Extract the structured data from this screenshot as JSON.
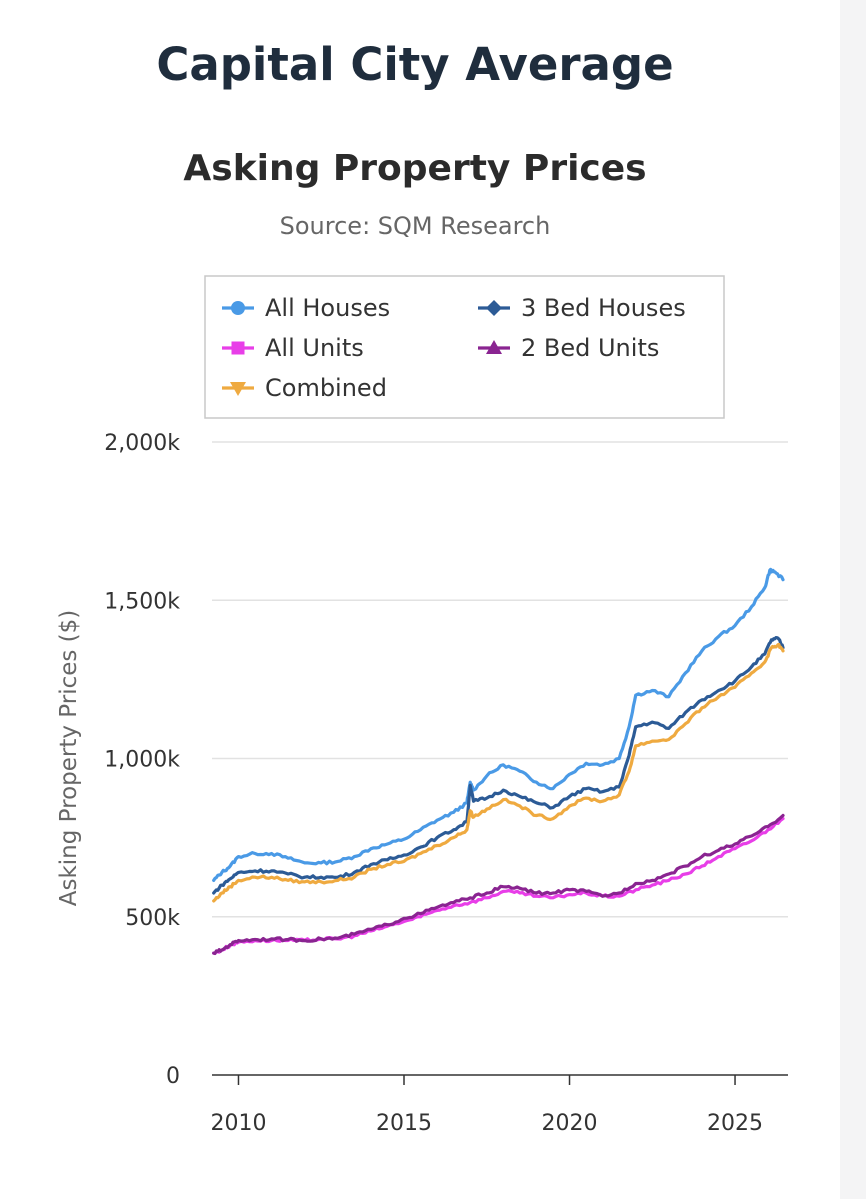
{
  "page": {
    "title": "Capital City Average"
  },
  "chart_data": {
    "type": "line",
    "title": "Asking Property Prices",
    "subtitle": "Source: SQM Research",
    "xlabel": "",
    "ylabel": "Asking Property Prices ($)",
    "xlim": [
      2009.2,
      2026.6
    ],
    "ylim": [
      0,
      2000000
    ],
    "x_ticks": [
      {
        "value": 2010,
        "label": "2010"
      },
      {
        "value": 2015,
        "label": "2015"
      },
      {
        "value": 2020,
        "label": "2020"
      },
      {
        "value": 2025,
        "label": "2025"
      }
    ],
    "y_ticks": [
      {
        "value": 0,
        "label": "0"
      },
      {
        "value": 500000,
        "label": "500k"
      },
      {
        "value": 1000000,
        "label": "1,000k"
      },
      {
        "value": 1500000,
        "label": "1,500k"
      },
      {
        "value": 2000000,
        "label": "2,000k"
      }
    ],
    "grid": true,
    "legend_position": "top",
    "series": [
      {
        "name": "All Houses",
        "color": "#4a9ae6",
        "marker": "circle",
        "points": [
          [
            2009.25,
            615000
          ],
          [
            2009.5,
            640000
          ],
          [
            2009.75,
            660000
          ],
          [
            2010,
            690000
          ],
          [
            2010.5,
            700000
          ],
          [
            2011,
            700000
          ],
          [
            2011.5,
            685000
          ],
          [
            2012,
            670000
          ],
          [
            2012.5,
            670000
          ],
          [
            2013,
            675000
          ],
          [
            2013.5,
            690000
          ],
          [
            2014,
            715000
          ],
          [
            2014.5,
            730000
          ],
          [
            2015,
            745000
          ],
          [
            2015.5,
            775000
          ],
          [
            2016,
            805000
          ],
          [
            2016.5,
            830000
          ],
          [
            2016.9,
            860000
          ],
          [
            2017,
            925000
          ],
          [
            2017.1,
            900000
          ],
          [
            2017.5,
            945000
          ],
          [
            2018,
            980000
          ],
          [
            2018.5,
            960000
          ],
          [
            2019,
            925000
          ],
          [
            2019.5,
            905000
          ],
          [
            2020,
            950000
          ],
          [
            2020.5,
            985000
          ],
          [
            2021,
            980000
          ],
          [
            2021.5,
            1000000
          ],
          [
            2021.8,
            1100000
          ],
          [
            2022,
            1200000
          ],
          [
            2022.5,
            1215000
          ],
          [
            2023,
            1195000
          ],
          [
            2023.5,
            1270000
          ],
          [
            2024,
            1340000
          ],
          [
            2024.5,
            1385000
          ],
          [
            2025,
            1420000
          ],
          [
            2025.5,
            1480000
          ],
          [
            2025.9,
            1540000
          ],
          [
            2026.05,
            1595000
          ],
          [
            2026.2,
            1590000
          ],
          [
            2026.45,
            1565000
          ]
        ]
      },
      {
        "name": "3 Bed Houses",
        "color": "#2c5b96",
        "marker": "diamond",
        "points": [
          [
            2009.25,
            575000
          ],
          [
            2009.5,
            600000
          ],
          [
            2009.75,
            620000
          ],
          [
            2010,
            640000
          ],
          [
            2010.5,
            645000
          ],
          [
            2011,
            645000
          ],
          [
            2011.5,
            635000
          ],
          [
            2012,
            625000
          ],
          [
            2012.5,
            625000
          ],
          [
            2013,
            625000
          ],
          [
            2013.5,
            640000
          ],
          [
            2014,
            665000
          ],
          [
            2014.5,
            680000
          ],
          [
            2015,
            695000
          ],
          [
            2015.5,
            720000
          ],
          [
            2016,
            750000
          ],
          [
            2016.5,
            775000
          ],
          [
            2016.9,
            800000
          ],
          [
            2017,
            915000
          ],
          [
            2017.1,
            865000
          ],
          [
            2017.5,
            875000
          ],
          [
            2018,
            900000
          ],
          [
            2018.5,
            880000
          ],
          [
            2019,
            860000
          ],
          [
            2019.5,
            845000
          ],
          [
            2020,
            880000
          ],
          [
            2020.5,
            905000
          ],
          [
            2021,
            895000
          ],
          [
            2021.5,
            910000
          ],
          [
            2021.8,
            1010000
          ],
          [
            2022,
            1100000
          ],
          [
            2022.5,
            1115000
          ],
          [
            2023,
            1095000
          ],
          [
            2023.5,
            1145000
          ],
          [
            2024,
            1185000
          ],
          [
            2024.5,
            1215000
          ],
          [
            2025,
            1245000
          ],
          [
            2025.5,
            1290000
          ],
          [
            2025.9,
            1330000
          ],
          [
            2026.1,
            1375000
          ],
          [
            2026.3,
            1380000
          ],
          [
            2026.45,
            1350000
          ]
        ]
      },
      {
        "name": "Combined",
        "color": "#efaa40",
        "marker": "triangle-down",
        "points": [
          [
            2009.25,
            550000
          ],
          [
            2009.5,
            575000
          ],
          [
            2009.75,
            595000
          ],
          [
            2010,
            615000
          ],
          [
            2010.5,
            625000
          ],
          [
            2011,
            625000
          ],
          [
            2011.5,
            615000
          ],
          [
            2012,
            610000
          ],
          [
            2012.5,
            610000
          ],
          [
            2013,
            615000
          ],
          [
            2013.5,
            625000
          ],
          [
            2014,
            650000
          ],
          [
            2014.5,
            665000
          ],
          [
            2015,
            675000
          ],
          [
            2015.5,
            700000
          ],
          [
            2016,
            725000
          ],
          [
            2016.5,
            750000
          ],
          [
            2016.9,
            775000
          ],
          [
            2017,
            835000
          ],
          [
            2017.1,
            815000
          ],
          [
            2017.5,
            840000
          ],
          [
            2018,
            870000
          ],
          [
            2018.5,
            850000
          ],
          [
            2019,
            820000
          ],
          [
            2019.5,
            810000
          ],
          [
            2020,
            850000
          ],
          [
            2020.5,
            875000
          ],
          [
            2021,
            865000
          ],
          [
            2021.5,
            885000
          ],
          [
            2021.8,
            960000
          ],
          [
            2022,
            1040000
          ],
          [
            2022.5,
            1055000
          ],
          [
            2023,
            1060000
          ],
          [
            2023.5,
            1110000
          ],
          [
            2024,
            1160000
          ],
          [
            2024.5,
            1195000
          ],
          [
            2025,
            1225000
          ],
          [
            2025.5,
            1270000
          ],
          [
            2025.9,
            1305000
          ],
          [
            2026.1,
            1350000
          ],
          [
            2026.3,
            1360000
          ],
          [
            2026.45,
            1340000
          ]
        ]
      },
      {
        "name": "All Units",
        "color": "#e83ee8",
        "marker": "square",
        "points": [
          [
            2009.25,
            385000
          ],
          [
            2009.5,
            395000
          ],
          [
            2009.75,
            410000
          ],
          [
            2010,
            420000
          ],
          [
            2010.5,
            425000
          ],
          [
            2011,
            425000
          ],
          [
            2011.5,
            425000
          ],
          [
            2012,
            425000
          ],
          [
            2012.5,
            430000
          ],
          [
            2013,
            430000
          ],
          [
            2013.5,
            440000
          ],
          [
            2014,
            455000
          ],
          [
            2014.5,
            470000
          ],
          [
            2015,
            485000
          ],
          [
            2015.5,
            500000
          ],
          [
            2016,
            520000
          ],
          [
            2016.5,
            535000
          ],
          [
            2017,
            545000
          ],
          [
            2017.5,
            560000
          ],
          [
            2018,
            580000
          ],
          [
            2018.5,
            575000
          ],
          [
            2019,
            565000
          ],
          [
            2019.5,
            560000
          ],
          [
            2020,
            570000
          ],
          [
            2020.5,
            575000
          ],
          [
            2021,
            565000
          ],
          [
            2021.5,
            565000
          ],
          [
            2022,
            585000
          ],
          [
            2022.5,
            600000
          ],
          [
            2023,
            615000
          ],
          [
            2023.5,
            635000
          ],
          [
            2024,
            660000
          ],
          [
            2024.5,
            690000
          ],
          [
            2025,
            715000
          ],
          [
            2025.5,
            740000
          ],
          [
            2026,
            775000
          ],
          [
            2026.45,
            810000
          ]
        ]
      },
      {
        "name": "2 Bed Units",
        "color": "#8a2491",
        "marker": "triangle-up",
        "points": [
          [
            2009.25,
            385000
          ],
          [
            2009.5,
            395000
          ],
          [
            2009.75,
            412000
          ],
          [
            2010,
            425000
          ],
          [
            2010.5,
            428000
          ],
          [
            2011,
            430000
          ],
          [
            2011.5,
            428000
          ],
          [
            2012,
            425000
          ],
          [
            2012.5,
            430000
          ],
          [
            2013,
            432000
          ],
          [
            2013.5,
            445000
          ],
          [
            2014,
            460000
          ],
          [
            2014.5,
            475000
          ],
          [
            2015,
            495000
          ],
          [
            2015.5,
            510000
          ],
          [
            2016,
            530000
          ],
          [
            2016.5,
            545000
          ],
          [
            2017,
            560000
          ],
          [
            2017.5,
            575000
          ],
          [
            2018,
            595000
          ],
          [
            2018.5,
            590000
          ],
          [
            2019,
            575000
          ],
          [
            2019.5,
            575000
          ],
          [
            2020,
            585000
          ],
          [
            2020.5,
            580000
          ],
          [
            2021,
            565000
          ],
          [
            2021.5,
            575000
          ],
          [
            2022,
            605000
          ],
          [
            2022.5,
            615000
          ],
          [
            2023,
            635000
          ],
          [
            2023.5,
            660000
          ],
          [
            2024,
            690000
          ],
          [
            2024.5,
            710000
          ],
          [
            2025,
            730000
          ],
          [
            2025.5,
            755000
          ],
          [
            2026,
            785000
          ],
          [
            2026.45,
            820000
          ]
        ]
      }
    ]
  }
}
